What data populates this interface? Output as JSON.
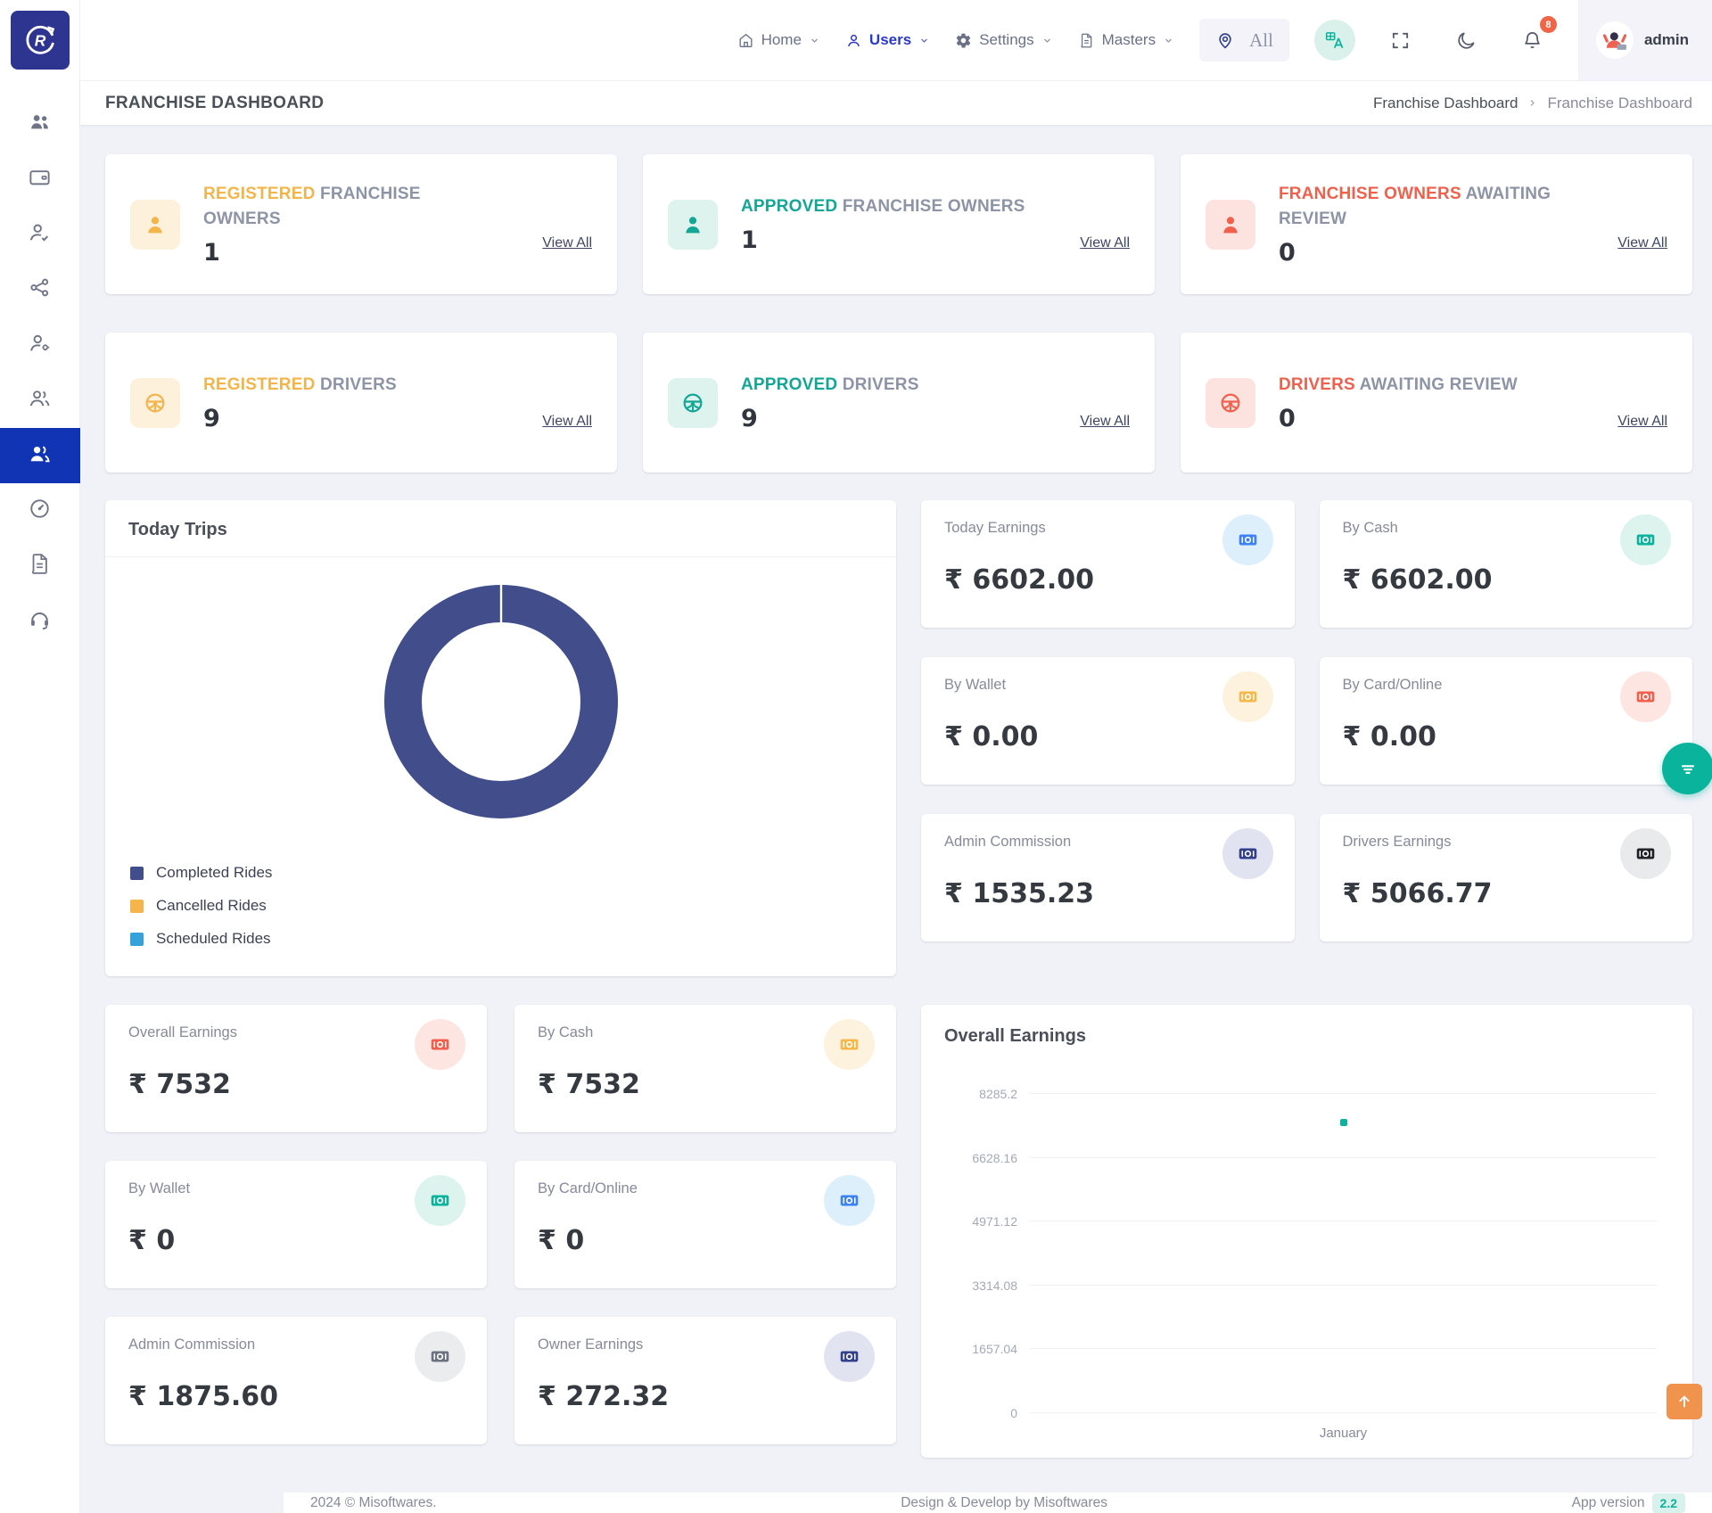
{
  "navbar": {
    "items": [
      {
        "label": "Home",
        "icon": "home-icon",
        "active": false
      },
      {
        "label": "Users",
        "icon": "user-icon",
        "active": true
      },
      {
        "label": "Settings",
        "icon": "gear-icon",
        "active": false
      },
      {
        "label": "Masters",
        "icon": "document-icon",
        "active": false
      }
    ],
    "location_filter": {
      "value": "All"
    },
    "notification_count": "8",
    "user_name": "admin"
  },
  "page_header": {
    "title": "FRANCHISE DASHBOARD",
    "breadcrumb": [
      "Franchise Dashboard",
      "Franchise Dashboard"
    ]
  },
  "stat_cards": [
    {
      "title_highlight": "REGISTERED",
      "title_rest": " FRANCHISE OWNERS",
      "value": "1",
      "link": "View All",
      "accent": "#f3b54a",
      "icon_bg": "#fdf1dc",
      "icon": "person"
    },
    {
      "title_highlight": "APPROVED",
      "title_rest": " FRANCHISE OWNERS",
      "value": "1",
      "link": "View All",
      "accent": "#14a695",
      "icon_bg": "#def2ee",
      "icon": "person"
    },
    {
      "title_highlight": "FRANCHISE OWNERS",
      "title_rest": " AWAITING REVIEW",
      "value": "0",
      "link": "View All",
      "accent": "#f0604d",
      "icon_bg": "#fce3df",
      "icon": "person"
    },
    {
      "title_highlight": "REGISTERED",
      "title_rest": " DRIVERS",
      "value": "9",
      "link": "View All",
      "accent": "#f3b54a",
      "icon_bg": "#fdf1dc",
      "icon": "steering"
    },
    {
      "title_highlight": "APPROVED",
      "title_rest": " DRIVERS",
      "value": "9",
      "link": "View All",
      "accent": "#14a695",
      "icon_bg": "#def2ee",
      "icon": "steering"
    },
    {
      "title_highlight": "DRIVERS",
      "title_rest": " AWAITING REVIEW",
      "value": "0",
      "link": "View All",
      "accent": "#f0604d",
      "icon_bg": "#fce3df",
      "icon": "steering"
    }
  ],
  "today_trips": {
    "title": "Today Trips"
  },
  "earnings_today": [
    {
      "label": "Today Earnings",
      "value": "₹ 6602.00",
      "icon_color": "#3b82f6",
      "icon_bg": "#ddeffb"
    },
    {
      "label": "By Cash",
      "value": "₹ 6602.00",
      "icon_color": "#0ab39c",
      "icon_bg": "#dcf3ee"
    },
    {
      "label": "By Wallet",
      "value": "₹ 0.00",
      "icon_color": "#f7b84b",
      "icon_bg": "#fdf2dd"
    },
    {
      "label": "By Card/Online",
      "value": "₹ 0.00",
      "icon_color": "#f0604d",
      "icon_bg": "#fde5e1"
    },
    {
      "label": "Admin Commission",
      "value": "₹ 1535.23",
      "icon_color": "#33418c",
      "icon_bg": "#e1e4f0"
    },
    {
      "label": "Drivers Earnings",
      "value": "₹ 5066.77",
      "icon_color": "#1f2327",
      "icon_bg": "#e9eaec"
    }
  ],
  "earnings_overall": [
    {
      "label": "Overall Earnings",
      "value": "₹ 7532",
      "icon_color": "#f0604d",
      "icon_bg": "#fde5e1"
    },
    {
      "label": "By Cash",
      "value": "₹ 7532",
      "icon_color": "#f7b84b",
      "icon_bg": "#fdf2dd"
    },
    {
      "label": "By Wallet",
      "value": "₹ 0",
      "icon_color": "#0ab39c",
      "icon_bg": "#dcf3ee"
    },
    {
      "label": "By Card/Online",
      "value": "₹ 0",
      "icon_color": "#3b82f6",
      "icon_bg": "#ddeffb"
    },
    {
      "label": "Admin Commission",
      "value": "₹ 1875.60",
      "icon_color": "#6b7280",
      "icon_bg": "#ebecee"
    },
    {
      "label": "Owner Earnings",
      "value": "₹ 272.32",
      "icon_color": "#33418c",
      "icon_bg": "#e1e4f0"
    }
  ],
  "overall_earnings_card": {
    "title": "Overall Earnings"
  },
  "chart_data": [
    {
      "type": "pie",
      "donut": true,
      "title": "Today Trips",
      "labels": [
        "Completed Rides",
        "Cancelled Rides",
        "Scheduled Rides"
      ],
      "values": [
        100,
        0,
        0
      ],
      "colors": [
        "#414e8b",
        "#f5b54a",
        "#35a2dc"
      ],
      "legend_position": "bottom-left"
    },
    {
      "type": "line",
      "title": "Overall Earnings",
      "x": [
        "January"
      ],
      "series": [
        {
          "name": "Overall Earnings",
          "values": [
            7532
          ]
        }
      ],
      "point": {
        "x": "January",
        "value": 7532,
        "x_frac": 0.5
      },
      "point_color": "#0ab39c",
      "yticks": [
        0,
        1657.04,
        3314.08,
        4971.12,
        6628.16,
        8285.2
      ],
      "ytick_labels": [
        "8285.2",
        "6628.16",
        "4971.12",
        "3314.08",
        "1657.04",
        "0"
      ],
      "ylim": [
        0,
        8285.2
      ],
      "grid": true
    }
  ],
  "footer": {
    "copyright": "2024 © Misoftwares.",
    "credit": "Design & Develop by Misoftwares",
    "version_label": "App version",
    "version": "2.2"
  }
}
